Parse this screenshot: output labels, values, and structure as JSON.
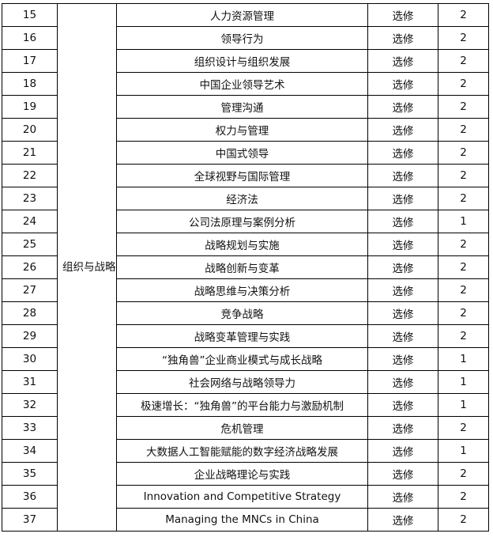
{
  "category": "组织与战略",
  "rows": [
    {
      "no": "15",
      "course": "人力资源管理",
      "type": "选修",
      "credits": "2"
    },
    {
      "no": "16",
      "course": "领导行为",
      "type": "选修",
      "credits": "2"
    },
    {
      "no": "17",
      "course": "组织设计与组织发展",
      "type": "选修",
      "credits": "2"
    },
    {
      "no": "18",
      "course": "中国企业领导艺术",
      "type": "选修",
      "credits": "2"
    },
    {
      "no": "19",
      "course": "管理沟通",
      "type": "选修",
      "credits": "2"
    },
    {
      "no": "20",
      "course": "权力与管理",
      "type": "选修",
      "credits": "2"
    },
    {
      "no": "21",
      "course": "中国式领导",
      "type": "选修",
      "credits": "2"
    },
    {
      "no": "22",
      "course": "全球视野与国际管理",
      "type": "选修",
      "credits": "2"
    },
    {
      "no": "23",
      "course": "经济法",
      "type": "选修",
      "credits": "2"
    },
    {
      "no": "24",
      "course": "公司法原理与案例分析",
      "type": "选修",
      "credits": "1"
    },
    {
      "no": "25",
      "course": "战略规划与实施",
      "type": "选修",
      "credits": "2"
    },
    {
      "no": "26",
      "course": "战略创新与变革",
      "type": "选修",
      "credits": "2"
    },
    {
      "no": "27",
      "course": "战略思维与决策分析",
      "type": "选修",
      "credits": "2"
    },
    {
      "no": "28",
      "course": "竞争战略",
      "type": "选修",
      "credits": "2"
    },
    {
      "no": "29",
      "course": "战略变革管理与实践",
      "type": "选修",
      "credits": "2"
    },
    {
      "no": "30",
      "course": "“独角兽”企业商业模式与成长战略",
      "type": "选修",
      "credits": "1"
    },
    {
      "no": "31",
      "course": "社会网络与战略领导力",
      "type": "选修",
      "credits": "1"
    },
    {
      "no": "32",
      "course": "极速增长：“独角兽”的平台能力与激励机制",
      "type": "选修",
      "credits": "1"
    },
    {
      "no": "33",
      "course": "危机管理",
      "type": "选修",
      "credits": "2"
    },
    {
      "no": "34",
      "course": "大数据人工智能赋能的数字经济战略发展",
      "type": "选修",
      "credits": "1"
    },
    {
      "no": "35",
      "course": "企业战略理论与实践",
      "type": "选修",
      "credits": "2"
    },
    {
      "no": "36",
      "course": "Innovation and Competitive Strategy",
      "type": "选修",
      "credits": "2"
    },
    {
      "no": "37",
      "course": "Managing the MNCs in China",
      "type": "选修",
      "credits": "2"
    }
  ]
}
